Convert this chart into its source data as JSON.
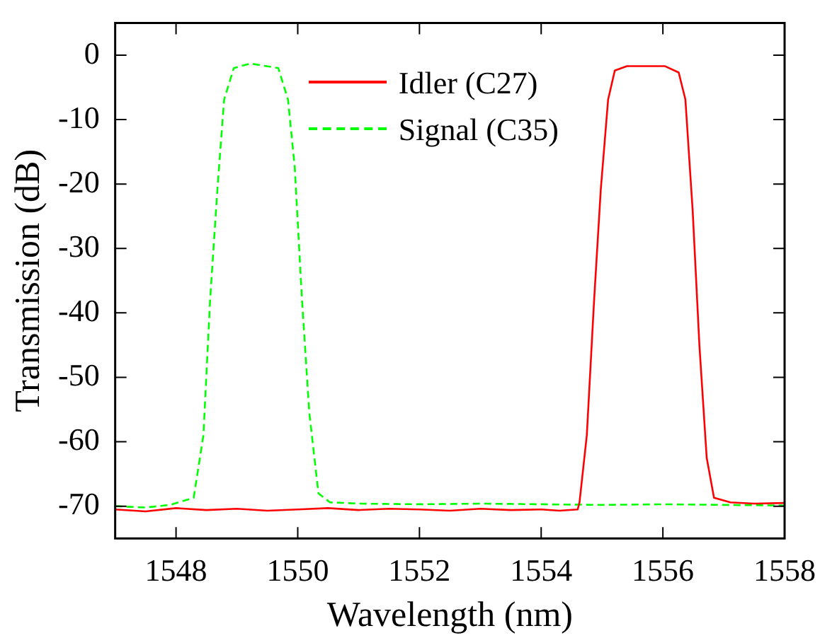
{
  "chart_data": {
    "type": "line",
    "xlabel": "Wavelength (nm)",
    "ylabel": "Transmission (dB)",
    "xlim": [
      1547,
      1558
    ],
    "xticks": [
      1548,
      1550,
      1552,
      1554,
      1556,
      1558
    ],
    "ylim": [
      -75,
      5
    ],
    "yticks": [
      0,
      -10,
      -20,
      -30,
      -40,
      -50,
      -60,
      -70
    ],
    "grid": false,
    "legend": "top",
    "marker": "none",
    "series": [
      {
        "name": "Idler (C27)",
        "color": "#ff0000",
        "line_style": "solid",
        "x": [
          1547,
          1547.5,
          1548,
          1548.5,
          1549,
          1549.5,
          1550,
          1550.5,
          1551,
          1551.5,
          1552,
          1552.5,
          1553,
          1553.5,
          1554,
          1554.3,
          1554.6,
          1554.63,
          1554.75,
          1554.87,
          1554.98,
          1555.1,
          1555.21,
          1555.41,
          1555.7,
          1556.03,
          1556.26,
          1556.37,
          1556.49,
          1556.6,
          1556.72,
          1556.84,
          1557.11,
          1557.5,
          1558
        ],
        "values": [
          -70.5,
          -70.8,
          -70.3,
          -70.6,
          -70.4,
          -70.7,
          -70.5,
          -70.3,
          -70.6,
          -70.4,
          -70.5,
          -70.7,
          -70.4,
          -70.6,
          -70.5,
          -70.7,
          -70.5,
          -69.4,
          -59,
          -38,
          -20.8,
          -6.9,
          -2.4,
          -1.7,
          -1.7,
          -1.7,
          -2.7,
          -6.9,
          -24.2,
          -45,
          -62.5,
          -68.7,
          -69.4,
          -69.6,
          -69.5
        ]
      },
      {
        "name": "Signal (C35)",
        "color": "#00ff00",
        "line_style": "dashed",
        "x": [
          1547,
          1547.5,
          1547.9,
          1548.29,
          1548.45,
          1548.56,
          1548.68,
          1548.79,
          1548.95,
          1549.22,
          1549.68,
          1549.84,
          1549.95,
          1550.07,
          1550.19,
          1550.34,
          1550.53,
          1551,
          1552,
          1553,
          1554,
          1555,
          1556,
          1557,
          1558
        ],
        "values": [
          -70,
          -70.2,
          -69.8,
          -68.7,
          -59,
          -38,
          -20.8,
          -6.9,
          -2,
          -1.3,
          -2,
          -6.9,
          -17.3,
          -38,
          -55.5,
          -68,
          -69.4,
          -69.6,
          -69.7,
          -69.6,
          -69.7,
          -69.8,
          -69.7,
          -69.8,
          -69.9
        ]
      }
    ]
  }
}
